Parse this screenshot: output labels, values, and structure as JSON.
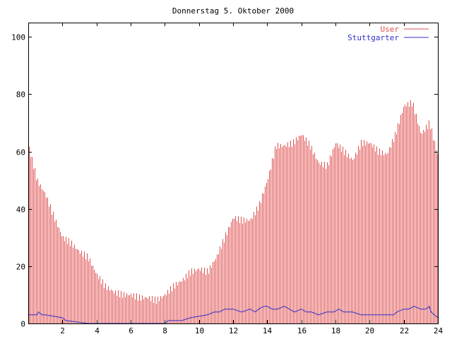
{
  "chart_data": {
    "type": "bar",
    "title": "Donnerstag 5. Oktober 2000",
    "xlim": [
      0,
      24
    ],
    "ylim": [
      0,
      105
    ],
    "x_ticks": [
      {
        "value": 2,
        "label": "2"
      },
      {
        "value": 4,
        "label": "4"
      },
      {
        "value": 6,
        "label": "6"
      },
      {
        "value": 8,
        "label": "8"
      },
      {
        "value": 10,
        "label": "10"
      },
      {
        "value": 12,
        "label": "12"
      },
      {
        "value": 14,
        "label": "14"
      },
      {
        "value": 16,
        "label": "16"
      },
      {
        "value": 18,
        "label": "18"
      },
      {
        "value": 20,
        "label": "20"
      },
      {
        "value": 22,
        "label": "22"
      },
      {
        "value": 24,
        "label": "24"
      }
    ],
    "y_ticks": [
      {
        "value": 0,
        "label": "0"
      },
      {
        "value": 20,
        "label": "20"
      },
      {
        "value": 40,
        "label": "40"
      },
      {
        "value": 60,
        "label": "60"
      },
      {
        "value": 80,
        "label": "80"
      },
      {
        "value": 100,
        "label": "100"
      }
    ],
    "legend_position": "top-right",
    "grid": false,
    "series": [
      {
        "name": "User",
        "style": "impulses",
        "color": "#e05050",
        "x": [
          0.0,
          0.5,
          1.0,
          1.5,
          2.0,
          2.5,
          3.0,
          3.5,
          4.0,
          4.5,
          5.0,
          5.5,
          6.0,
          6.5,
          7.0,
          7.5,
          8.0,
          8.5,
          9.0,
          9.5,
          10.0,
          10.5,
          11.0,
          11.5,
          12.0,
          12.5,
          13.0,
          13.5,
          14.0,
          14.5,
          15.0,
          15.5,
          16.0,
          16.5,
          17.0,
          17.5,
          18.0,
          18.5,
          19.0,
          19.5,
          20.0,
          20.5,
          21.0,
          21.5,
          22.0,
          22.5,
          23.0,
          23.5,
          24.0
        ],
        "y": [
          62,
          50,
          45,
          37,
          30,
          28,
          25,
          23,
          17,
          13,
          11,
          10,
          10,
          9,
          9,
          8,
          10,
          13,
          15,
          18,
          19,
          18,
          23,
          30,
          37,
          36,
          36,
          41,
          50,
          62,
          62,
          63,
          66,
          62,
          56,
          55,
          63,
          60,
          57,
          63,
          63,
          60,
          59,
          66,
          76,
          77,
          66,
          70,
          58
        ]
      },
      {
        "name": "Stuttgarter",
        "style": "lines",
        "color": "#3030c8",
        "x": [
          0.0,
          0.5,
          0.6,
          0.8,
          1.0,
          2.0,
          2.2,
          3.5,
          8.0,
          8.2,
          9.0,
          9.5,
          10.5,
          10.9,
          11.2,
          11.5,
          12.0,
          12.5,
          13.0,
          13.3,
          13.5,
          13.8,
          14.0,
          14.3,
          14.6,
          15.0,
          15.3,
          15.6,
          16.0,
          16.3,
          16.6,
          17.0,
          17.5,
          17.9,
          18.2,
          18.5,
          19.0,
          19.5,
          20.0,
          20.5,
          21.0,
          21.4,
          21.6,
          22.0,
          22.3,
          22.6,
          23.0,
          23.3,
          23.5,
          23.6,
          24.0
        ],
        "y": [
          3,
          3,
          4,
          3,
          3,
          2,
          1,
          0,
          0,
          1,
          1,
          2,
          3,
          4,
          4,
          5,
          5,
          4,
          5,
          4,
          5,
          6,
          6,
          5,
          5,
          6,
          5,
          4,
          5,
          4,
          4,
          3,
          4,
          4,
          5,
          4,
          4,
          3,
          3,
          3,
          3,
          3,
          4,
          5,
          5,
          6,
          5,
          5,
          6,
          4,
          2
        ]
      }
    ]
  }
}
